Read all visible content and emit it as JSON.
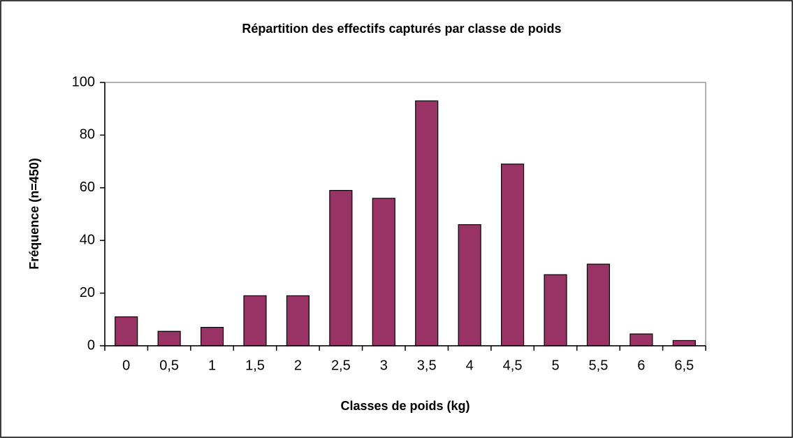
{
  "chart_data": {
    "type": "bar",
    "title": "Répartition des effectifs capturés par classe de poids",
    "x_label": "Classes de poids (kg)",
    "y_label": "Fréquence (n=450)",
    "categories": [
      "0",
      "0,5",
      "1",
      "1,5",
      "2",
      "2,5",
      "3",
      "3,5",
      "4",
      "4,5",
      "5",
      "5,5",
      "6",
      "6,5"
    ],
    "values": [
      11,
      5.5,
      7,
      19,
      19,
      59,
      56,
      93,
      46,
      69,
      27,
      31,
      4.5,
      2
    ],
    "color": "#993366",
    "ylim": [
      0,
      100
    ],
    "yticks": [
      0,
      20,
      40,
      60,
      80,
      100
    ],
    "grid": false
  }
}
